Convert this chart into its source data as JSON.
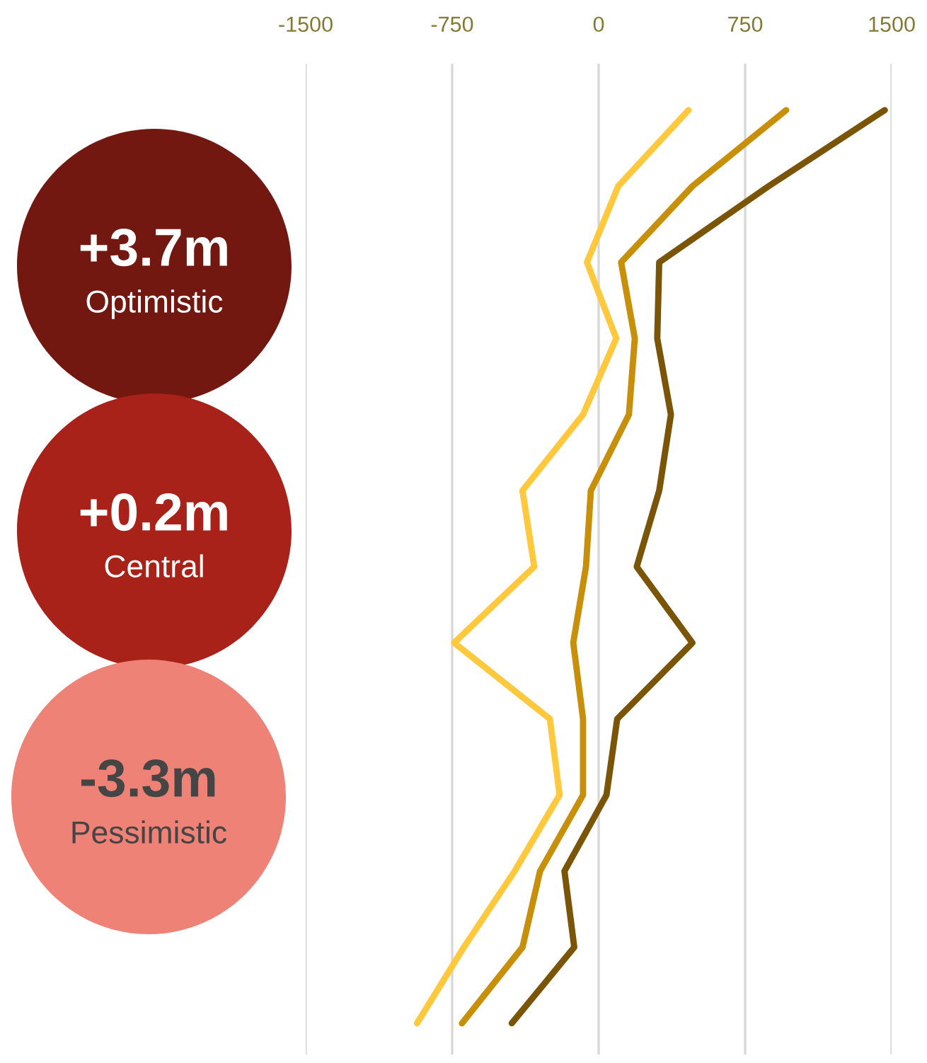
{
  "chart_data": {
    "type": "line",
    "orientation": "horizontal",
    "categories": [
      null,
      null,
      null,
      null,
      null,
      null,
      null,
      null,
      null,
      null,
      null,
      null,
      null
    ],
    "series": [
      {
        "color": "#ffc83d",
        "values": [
          460,
          100,
          -60,
          90,
          -80,
          -390,
          -330,
          -740,
          -250,
          -200,
          -430,
          -690,
          -930
        ]
      },
      {
        "color": "#c8900a",
        "values": [
          960,
          480,
          115,
          185,
          155,
          -40,
          -65,
          -130,
          -80,
          -80,
          -300,
          -390,
          -700
        ]
      },
      {
        "color": "#7a5508",
        "values": [
          1465,
          870,
          310,
          300,
          370,
          310,
          195,
          480,
          95,
          40,
          -175,
          -125,
          -445
        ]
      }
    ],
    "xlim": [
      -1500,
      1500
    ],
    "xticks": [
      -1500,
      -750,
      0,
      750,
      1500
    ],
    "grid": "x",
    "legend": false,
    "marker": "none",
    "line_style": "solid",
    "tick_labels": "x",
    "annotations": [
      "+3.7m",
      "Optimistic",
      "+0.2m",
      "Central",
      "-3.3m",
      "Pessimistic"
    ]
  }
}
